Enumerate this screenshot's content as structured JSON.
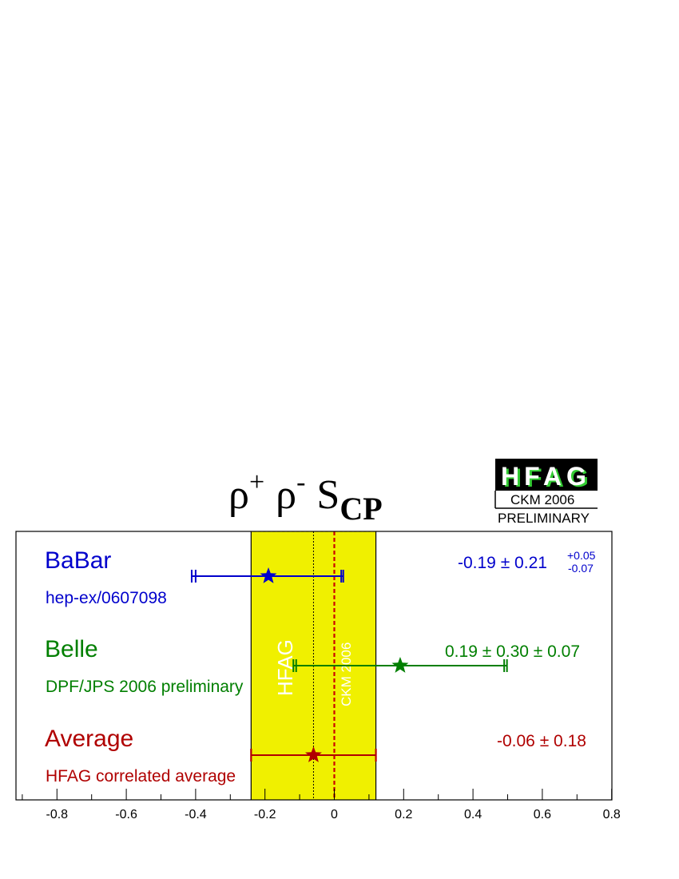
{
  "title": {
    "rho1": "ρ",
    "sup1": "+",
    "rho2": "ρ",
    "sup2": "-",
    "main": "S",
    "sub": "CP"
  },
  "badge": {
    "logo": "HFAG",
    "subtitle": "CKM 2006",
    "status": "PRELIMINARY"
  },
  "band_labels": {
    "hfag": "HFAG",
    "ckm": "CKM 2006"
  },
  "colors": {
    "babar": "#0000cc",
    "belle": "#007f00",
    "average": "#b00000",
    "band": "#f0f000",
    "ckm_line": "#cc0000",
    "logo_bg": "#000000",
    "logo_text": "#ffffff",
    "logo_shadow": "#33cc33"
  },
  "chart_data": {
    "type": "forest",
    "xlim": [
      -0.93,
      0.8
    ],
    "xticks": [
      "-0.8",
      "-0.6",
      "-0.4",
      "-0.2",
      "0",
      "0.2",
      "0.4",
      "0.6",
      "0.8"
    ],
    "xtick_values": [
      -0.8,
      -0.6,
      -0.4,
      -0.2,
      0,
      0.2,
      0.4,
      0.6,
      0.8
    ],
    "average_band": {
      "center": -0.06,
      "low": -0.24,
      "high": 0.12
    },
    "ckm_prediction": 0.0,
    "measurements": [
      {
        "name": "BaBar",
        "reference": "hep-ex/0607098",
        "value": -0.19,
        "stat": 0.21,
        "syst_plus": 0.05,
        "syst_minus": 0.07,
        "value_text": "-0.19 ± 0.21",
        "syst_plus_text": "+0.05",
        "syst_minus_text": "-0.07",
        "color_key": "babar"
      },
      {
        "name": "Belle",
        "reference": "DPF/JPS 2006 preliminary",
        "value": 0.19,
        "stat": 0.3,
        "syst": 0.07,
        "value_text": "0.19 ± 0.30 ± 0.07",
        "color_key": "belle"
      },
      {
        "name": "Average",
        "reference": "HFAG correlated average",
        "value": -0.06,
        "stat": 0.18,
        "value_text": "-0.06 ± 0.18",
        "color_key": "average"
      }
    ]
  }
}
